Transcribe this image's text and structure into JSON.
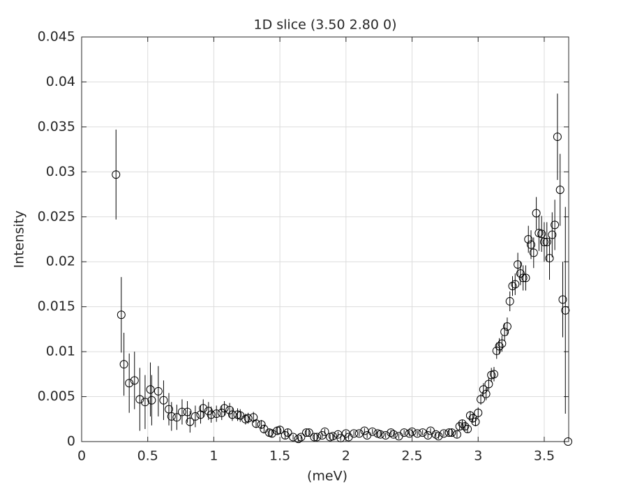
{
  "chart_data": {
    "type": "scatter",
    "title": "1D slice (3.50 2.80 0)",
    "x_label": "(meV)",
    "y_label": "Intensity",
    "x": [
      0.26,
      0.3,
      0.32,
      0.36,
      0.4,
      0.44,
      0.48,
      0.52,
      0.53,
      0.58,
      0.62,
      0.66,
      0.68,
      0.72,
      0.76,
      0.8,
      0.82,
      0.86,
      0.9,
      0.92,
      0.96,
      0.98,
      1.02,
      1.06,
      1.08,
      1.12,
      1.14,
      1.18,
      1.2,
      1.24,
      1.26,
      1.3,
      1.32,
      1.36,
      1.38,
      1.42,
      1.44,
      1.48,
      1.5,
      1.54,
      1.56,
      1.6,
      1.64,
      1.66,
      1.7,
      1.72,
      1.76,
      1.78,
      1.82,
      1.84,
      1.88,
      1.9,
      1.94,
      1.96,
      2.0,
      2.02,
      2.06,
      2.1,
      2.14,
      2.16,
      2.2,
      2.24,
      2.26,
      2.3,
      2.34,
      2.36,
      2.4,
      2.44,
      2.48,
      2.5,
      2.54,
      2.58,
      2.62,
      2.64,
      2.68,
      2.7,
      2.74,
      2.78,
      2.8,
      2.84,
      2.86,
      2.88,
      2.9,
      2.92,
      2.94,
      2.96,
      2.98,
      3.0,
      3.02,
      3.04,
      3.06,
      3.08,
      3.1,
      3.12,
      3.14,
      3.16,
      3.18,
      3.2,
      3.22,
      3.24,
      3.26,
      3.28,
      3.3,
      3.32,
      3.34,
      3.36,
      3.38,
      3.4,
      3.42,
      3.44,
      3.46,
      3.48,
      3.5,
      3.52,
      3.54,
      3.56,
      3.58,
      3.6,
      3.62,
      3.64,
      3.66,
      3.68
    ],
    "values": [
      0.0297,
      0.0141,
      0.0086,
      0.0065,
      0.0068,
      0.0047,
      0.0044,
      0.0058,
      0.0046,
      0.0056,
      0.0046,
      0.0036,
      0.0028,
      0.0027,
      0.0033,
      0.0033,
      0.0022,
      0.0028,
      0.003,
      0.0037,
      0.0034,
      0.003,
      0.0031,
      0.0032,
      0.0037,
      0.0035,
      0.003,
      0.003,
      0.0029,
      0.0025,
      0.0026,
      0.0027,
      0.002,
      0.0019,
      0.0014,
      0.001,
      0.0009,
      0.0012,
      0.0013,
      0.0007,
      0.001,
      0.0005,
      0.0003,
      0.0005,
      0.001,
      0.001,
      0.0005,
      0.0005,
      0.0007,
      0.0011,
      0.0005,
      0.0006,
      0.0008,
      0.0004,
      0.0009,
      0.0005,
      0.0009,
      0.0009,
      0.0012,
      0.0007,
      0.0011,
      0.0009,
      0.0008,
      0.0007,
      0.001,
      0.0008,
      0.0006,
      0.001,
      0.0009,
      0.0011,
      0.0009,
      0.001,
      0.0007,
      0.0012,
      0.0008,
      0.0006,
      0.0009,
      0.001,
      0.001,
      0.0008,
      0.0017,
      0.002,
      0.0017,
      0.0014,
      0.0029,
      0.0026,
      0.0022,
      0.0032,
      0.0047,
      0.0058,
      0.0053,
      0.0064,
      0.0074,
      0.0075,
      0.0101,
      0.0106,
      0.0109,
      0.0122,
      0.0128,
      0.0156,
      0.0173,
      0.0175,
      0.0197,
      0.0187,
      0.0182,
      0.0182,
      0.0225,
      0.0219,
      0.021,
      0.0254,
      0.0232,
      0.0231,
      0.0222,
      0.0222,
      0.0204,
      0.023,
      0.0241,
      0.0339,
      0.028,
      0.0158,
      0.0146,
      0.0
    ],
    "errors": [
      0.005,
      0.0042,
      0.0035,
      0.0033,
      0.0032,
      0.0035,
      0.003,
      0.003,
      0.0028,
      0.0028,
      0.0022,
      0.0018,
      0.0016,
      0.0014,
      0.0014,
      0.0012,
      0.0012,
      0.0012,
      0.001,
      0.001,
      0.001,
      0.0009,
      0.0009,
      0.0008,
      0.0008,
      0.0008,
      0.0007,
      0.0007,
      0.0007,
      0.0006,
      0.0006,
      0.0006,
      0.0005,
      0.0005,
      0.0005,
      0.0004,
      0.0004,
      0.0004,
      0.0004,
      0.0004,
      0.0004,
      0.0003,
      0.0003,
      0.0003,
      0.0003,
      0.0003,
      0.0003,
      0.0003,
      0.0003,
      0.0003,
      0.0003,
      0.0003,
      0.0003,
      0.0003,
      0.0003,
      0.0003,
      0.0003,
      0.0003,
      0.0003,
      0.0003,
      0.0003,
      0.0003,
      0.0003,
      0.0003,
      0.0003,
      0.0003,
      0.0003,
      0.0003,
      0.0003,
      0.0003,
      0.0003,
      0.0003,
      0.0003,
      0.0003,
      0.0003,
      0.0003,
      0.0003,
      0.0003,
      0.0004,
      0.0004,
      0.0004,
      0.0004,
      0.0004,
      0.0004,
      0.0005,
      0.0005,
      0.0005,
      0.0006,
      0.0006,
      0.0007,
      0.0007,
      0.0007,
      0.0008,
      0.0008,
      0.0009,
      0.0009,
      0.0009,
      0.001,
      0.001,
      0.0011,
      0.0011,
      0.0012,
      0.0013,
      0.0013,
      0.0014,
      0.0014,
      0.0015,
      0.0016,
      0.0017,
      0.0018,
      0.002,
      0.002,
      0.0022,
      0.0022,
      0.0024,
      0.0025,
      0.0028,
      0.0048,
      0.004,
      0.0042,
      0.0115,
      0.0
    ],
    "color": "#000000",
    "xlim": [
      0,
      3.685
    ],
    "xticks": [
      0,
      0.5,
      1,
      1.5,
      2,
      2.5,
      3,
      3.5
    ],
    "ylim": [
      0,
      0.045
    ],
    "yticks": [
      0,
      0.005,
      0.01,
      0.015,
      0.02,
      0.025,
      0.03,
      0.035,
      0.04,
      0.045
    ],
    "grid": true
  }
}
